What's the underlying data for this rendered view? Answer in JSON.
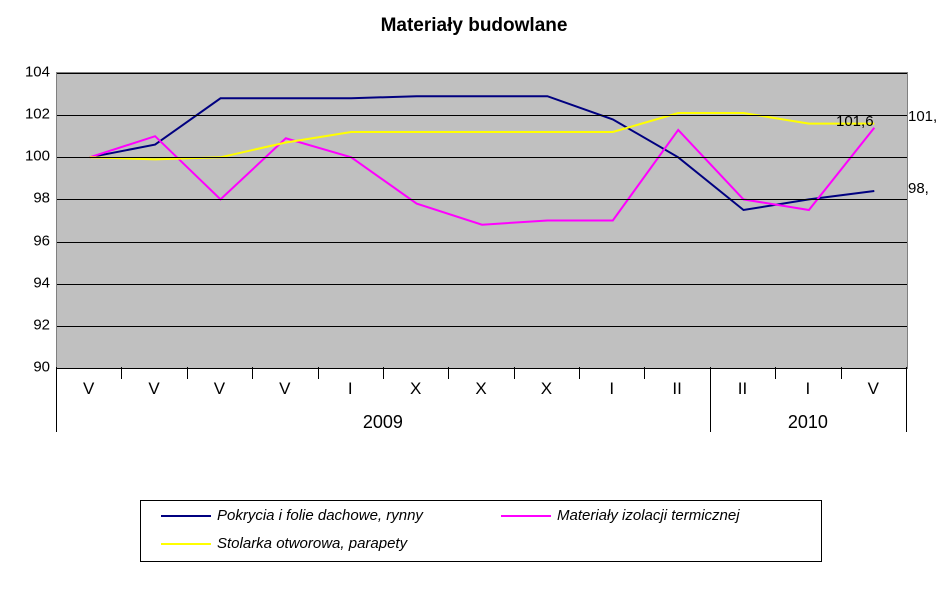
{
  "chart": {
    "type": "line",
    "title": "Materiały budowlane",
    "title_fontsize": 19,
    "title_fontweight": "bold",
    "background_color": "#ffffff",
    "plot_background_color": "#c0c0c0",
    "grid_color": "#000000",
    "plot_border_color": "#808080",
    "x_categories": [
      "V",
      "V",
      "V",
      "V",
      "I",
      "X",
      "X",
      "X",
      "I",
      "II",
      "II",
      "I",
      "V"
    ],
    "year_groups": [
      {
        "label": "2009",
        "span": [
          0,
          9
        ]
      },
      {
        "label": "2010",
        "span": [
          10,
          12
        ]
      }
    ],
    "x_tick_fontsize": 17,
    "year_fontsize": 18,
    "ylim": [
      90,
      104
    ],
    "ytick_step": 2,
    "y_ticks": [
      90,
      92,
      94,
      96,
      98,
      100,
      102,
      104
    ],
    "y_label_fontsize": 15,
    "series": [
      {
        "name": "Pokrycia i folie dachowe, rynny",
        "color": "#000080",
        "line_width": 2,
        "values": [
          100.0,
          100.6,
          102.8,
          102.8,
          102.8,
          102.9,
          102.9,
          102.9,
          101.8,
          100.0,
          97.5,
          98.0,
          98.4
        ]
      },
      {
        "name": "Materiały izolacji termicznej",
        "color": "#ff00ff",
        "line_width": 2,
        "values": [
          100.0,
          101.0,
          98.0,
          100.9,
          100.0,
          97.8,
          96.8,
          97.0,
          97.0,
          101.3,
          98.0,
          97.5,
          101.4
        ]
      },
      {
        "name": "Stolarka otworowa, parapety",
        "color": "#ffff00",
        "line_width": 2,
        "values": [
          100.0,
          99.9,
          100.0,
          100.7,
          101.2,
          101.2,
          101.2,
          101.2,
          101.2,
          102.1,
          102.1,
          101.6,
          101.6
        ]
      }
    ],
    "end_labels": [
      {
        "text": "101,",
        "series": 2,
        "y": 101.8,
        "dx": 0
      },
      {
        "text": "101,6",
        "series": 2,
        "y": 101.6,
        "dx": -72
      },
      {
        "text": "98,",
        "series": 0,
        "y": 98.4,
        "dx": 0
      }
    ],
    "legend": {
      "border_color": "#000000",
      "background_color": "#ffffff",
      "font_style": "italic",
      "fontsize": 15,
      "items": [
        {
          "series": 0,
          "row": 0,
          "col": 0
        },
        {
          "series": 1,
          "row": 0,
          "col": 1
        },
        {
          "series": 2,
          "row": 1,
          "col": 0
        }
      ]
    }
  }
}
